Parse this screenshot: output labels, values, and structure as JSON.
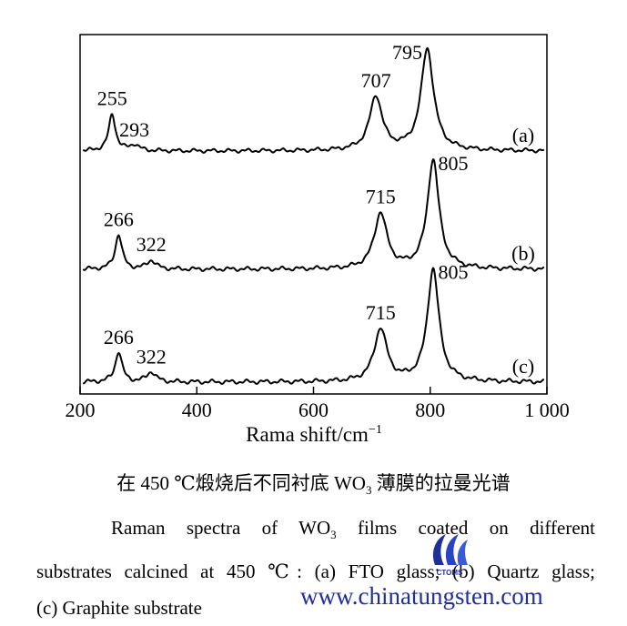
{
  "chart_data": {
    "type": "line",
    "xlabel": "Rama shift/cm",
    "xlabel_superscript": "−1",
    "xlim": [
      200,
      1000
    ],
    "x_ticks": [
      200,
      400,
      600,
      800,
      1000
    ],
    "x_tick_labels": [
      "200",
      "400",
      "600",
      "800",
      "1 000"
    ],
    "grid": false,
    "series": [
      {
        "name": "(a)",
        "peaks": [
          {
            "x": 255,
            "height": 0.36,
            "width": 7,
            "label": "255"
          },
          {
            "x": 293,
            "height": 0.06,
            "width": 9,
            "label": "293"
          },
          {
            "x": 707,
            "height": 0.53,
            "width": 13,
            "label": "707"
          },
          {
            "x": 795,
            "height": 1.0,
            "width": 13,
            "label": "795"
          }
        ]
      },
      {
        "name": "(b)",
        "peaks": [
          {
            "x": 266,
            "height": 0.32,
            "width": 7,
            "label": "266"
          },
          {
            "x": 322,
            "height": 0.08,
            "width": 9,
            "label": "322"
          },
          {
            "x": 715,
            "height": 0.51,
            "width": 13,
            "label": "715"
          },
          {
            "x": 805,
            "height": 1.0,
            "width": 12,
            "label": "805"
          }
        ]
      },
      {
        "name": "(c)",
        "peaks": [
          {
            "x": 266,
            "height": 0.27,
            "width": 7,
            "label": "266"
          },
          {
            "x": 322,
            "height": 0.09,
            "width": 9,
            "label": "322"
          },
          {
            "x": 715,
            "height": 0.47,
            "width": 13,
            "label": "715"
          },
          {
            "x": 805,
            "height": 1.0,
            "width": 12,
            "label": "805"
          }
        ]
      }
    ]
  },
  "caption": {
    "cn_pre": "在 450 ℃煅烧后不同衬底 WO",
    "cn_sub": "3",
    "cn_post": " 薄膜的拉曼光谱",
    "en_line1_pre": "Raman spectra of WO",
    "en_line1_sub": "3",
    "en_line1_post": " films coated on different",
    "en_line2": "substrates calcined at 450 ℃: (a) FTO glass; (b) Quartz glass;",
    "en_line3": "(c) Graphite substrate"
  },
  "watermark": {
    "logo_text": "CTOMS",
    "url": "www.chinatungsten.com",
    "color": "#1f2f9a"
  }
}
